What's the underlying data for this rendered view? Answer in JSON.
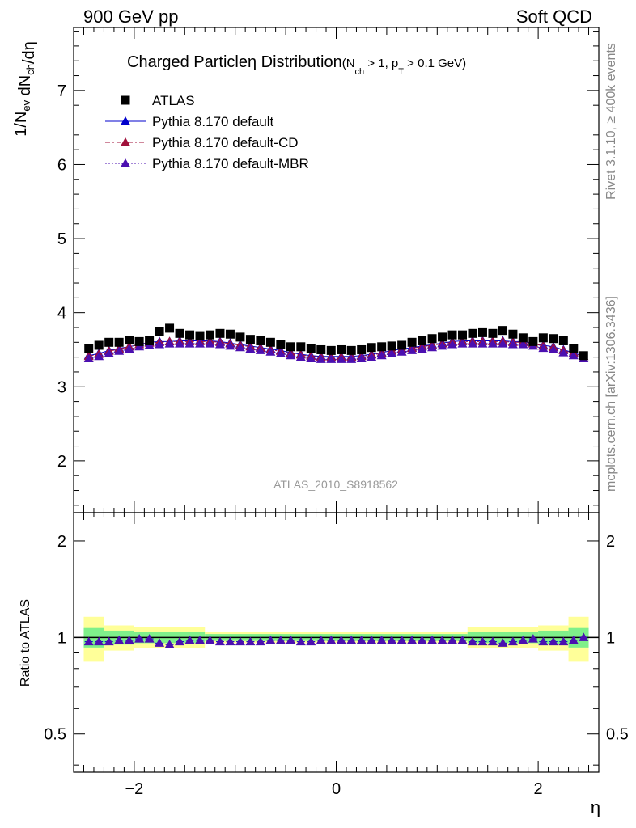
{
  "header": {
    "left": "900 GeV pp",
    "right": "Soft QCD"
  },
  "side_labels": {
    "rivet": "Rivet 3.1.10, ≥ 400k events",
    "mcplots": "mcplots.cern.ch [arXiv:1306.3436]"
  },
  "chart_data": [
    {
      "type": "scatter",
      "panel": "main",
      "title_main": "Charged Particle",
      "title_eta": "η",
      "title_dist": " Distribution",
      "title_cond": "(N",
      "title_cond_sub1": "ch",
      "title_cond_mid": " > 1, p",
      "title_cond_sub2": "T",
      "title_cond_end": " > 0.1 GeV)",
      "ylabel_parts": [
        "1/N",
        "ev",
        " dN",
        "ch",
        "/dη"
      ],
      "xlabel": "η",
      "watermark": "ATLAS_2010_S8918562",
      "xlim": [
        -2.6,
        2.6
      ],
      "ylim": [
        1.3,
        7.85
      ],
      "yticks": [
        2,
        3,
        4,
        5,
        6,
        7
      ],
      "ytick_labels": [
        "2",
        "3",
        "4",
        "5",
        "6",
        "7"
      ],
      "legend_placement": "top-left",
      "x": [
        -2.45,
        -2.35,
        -2.25,
        -2.15,
        -2.05,
        -1.95,
        -1.85,
        -1.75,
        -1.65,
        -1.55,
        -1.45,
        -1.35,
        -1.25,
        -1.15,
        -1.05,
        -0.95,
        -0.85,
        -0.75,
        -0.65,
        -0.55,
        -0.45,
        -0.35,
        -0.25,
        -0.15,
        -0.05,
        0.05,
        0.15,
        0.25,
        0.35,
        0.45,
        0.55,
        0.65,
        0.75,
        0.85,
        0.95,
        1.05,
        1.15,
        1.25,
        1.35,
        1.45,
        1.55,
        1.65,
        1.75,
        1.85,
        1.95,
        2.05,
        2.15,
        2.25,
        2.35,
        2.45
      ],
      "series": [
        {
          "name": "ATLAS",
          "marker": "square",
          "color": "#000000",
          "values": [
            3.52,
            3.56,
            3.6,
            3.6,
            3.63,
            3.61,
            3.62,
            3.75,
            3.79,
            3.72,
            3.7,
            3.69,
            3.7,
            3.72,
            3.71,
            3.67,
            3.64,
            3.62,
            3.6,
            3.57,
            3.54,
            3.54,
            3.52,
            3.5,
            3.49,
            3.5,
            3.49,
            3.5,
            3.53,
            3.54,
            3.55,
            3.56,
            3.6,
            3.62,
            3.65,
            3.67,
            3.7,
            3.7,
            3.72,
            3.73,
            3.72,
            3.76,
            3.71,
            3.66,
            3.61,
            3.66,
            3.65,
            3.62,
            3.52,
            3.42
          ]
        },
        {
          "name": "Pythia 8.170 default",
          "marker": "triangle",
          "line": "solid",
          "color": "#0000cc",
          "values": [
            3.42,
            3.45,
            3.49,
            3.52,
            3.54,
            3.57,
            3.6,
            3.61,
            3.61,
            3.62,
            3.62,
            3.62,
            3.62,
            3.61,
            3.59,
            3.57,
            3.55,
            3.53,
            3.51,
            3.49,
            3.46,
            3.44,
            3.42,
            3.41,
            3.41,
            3.41,
            3.41,
            3.42,
            3.44,
            3.46,
            3.49,
            3.51,
            3.53,
            3.55,
            3.57,
            3.59,
            3.61,
            3.62,
            3.62,
            3.62,
            3.62,
            3.62,
            3.61,
            3.61,
            3.59,
            3.56,
            3.54,
            3.5,
            3.46,
            3.41
          ]
        },
        {
          "name": "Pythia 8.170 default-CD",
          "marker": "triangle",
          "line": "dashdot",
          "color": "#a0103a",
          "values": [
            3.41,
            3.44,
            3.48,
            3.51,
            3.54,
            3.57,
            3.59,
            3.6,
            3.61,
            3.61,
            3.61,
            3.61,
            3.61,
            3.6,
            3.58,
            3.56,
            3.54,
            3.52,
            3.5,
            3.48,
            3.45,
            3.43,
            3.41,
            3.4,
            3.4,
            3.4,
            3.4,
            3.41,
            3.43,
            3.45,
            3.48,
            3.5,
            3.52,
            3.54,
            3.56,
            3.58,
            3.6,
            3.61,
            3.61,
            3.61,
            3.61,
            3.61,
            3.6,
            3.6,
            3.58,
            3.55,
            3.53,
            3.49,
            3.45,
            3.41
          ]
        },
        {
          "name": "Pythia 8.170 default-MBR",
          "marker": "triangle",
          "line": "dotted",
          "color": "#4b0fb0",
          "values": [
            3.38,
            3.41,
            3.45,
            3.48,
            3.51,
            3.54,
            3.56,
            3.57,
            3.58,
            3.58,
            3.58,
            3.58,
            3.58,
            3.57,
            3.55,
            3.53,
            3.51,
            3.49,
            3.47,
            3.45,
            3.42,
            3.4,
            3.38,
            3.37,
            3.37,
            3.37,
            3.37,
            3.38,
            3.4,
            3.42,
            3.45,
            3.47,
            3.49,
            3.51,
            3.53,
            3.55,
            3.57,
            3.58,
            3.58,
            3.58,
            3.58,
            3.58,
            3.57,
            3.57,
            3.55,
            3.52,
            3.5,
            3.46,
            3.42,
            3.38
          ]
        }
      ]
    },
    {
      "type": "scatter",
      "panel": "ratio",
      "ylabel": "Ratio to ATLAS",
      "xlabel": "η",
      "xlim": [
        -2.6,
        2.6
      ],
      "ylim": [
        0.38,
        2.45
      ],
      "log_y": true,
      "yticks": [
        0.5,
        1,
        2
      ],
      "ytick_labels": [
        "0.5",
        "1",
        "2"
      ],
      "xticks": [
        -2,
        0,
        2
      ],
      "xtick_labels": [
        "−2",
        "0",
        "2"
      ],
      "band_colors": {
        "inner": "#7ff08a",
        "outer": "#ffff99"
      },
      "band_edges": [
        -2.5,
        -2.3,
        -2.0,
        -1.3,
        1.3,
        2.0,
        2.3,
        2.5
      ],
      "band_inner": [
        0.07,
        0.05,
        0.04,
        0.025,
        0.04,
        0.05,
        0.07
      ],
      "band_outer": [
        0.16,
        0.09,
        0.075,
        0.04,
        0.075,
        0.09,
        0.16
      ],
      "values": [
        0.97,
        0.97,
        0.97,
        0.98,
        0.98,
        0.99,
        0.99,
        0.96,
        0.95,
        0.97,
        0.98,
        0.98,
        0.98,
        0.97,
        0.97,
        0.97,
        0.97,
        0.97,
        0.98,
        0.98,
        0.98,
        0.97,
        0.97,
        0.98,
        0.98,
        0.98,
        0.98,
        0.98,
        0.98,
        0.98,
        0.98,
        0.98,
        0.98,
        0.98,
        0.98,
        0.98,
        0.98,
        0.98,
        0.97,
        0.97,
        0.97,
        0.96,
        0.97,
        0.98,
        0.99,
        0.97,
        0.97,
        0.97,
        0.98,
        1.0
      ]
    }
  ]
}
